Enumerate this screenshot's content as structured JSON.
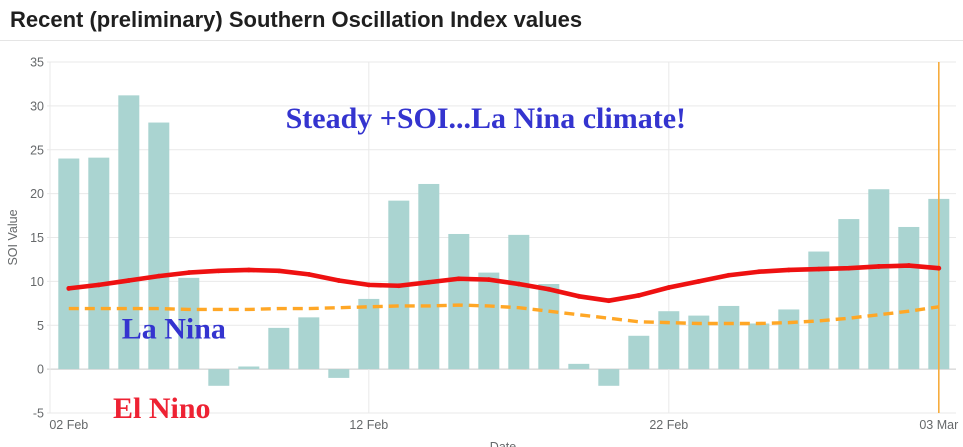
{
  "page": {
    "title": "Recent (preliminary) Southern Oscillation Index values"
  },
  "chart_data": {
    "type": "bar",
    "title": "Recent (preliminary) Southern Oscillation Index values",
    "xlabel": "Date",
    "ylabel": "SOI Value",
    "ylim": [
      -5,
      35
    ],
    "ytick_step": 5,
    "grid": true,
    "legend": "none",
    "categories": [
      "02 Feb",
      "03 Feb",
      "04 Feb",
      "05 Feb",
      "06 Feb",
      "07 Feb",
      "08 Feb",
      "09 Feb",
      "10 Feb",
      "11 Feb",
      "12 Feb",
      "13 Feb",
      "14 Feb",
      "15 Feb",
      "16 Feb",
      "17 Feb",
      "18 Feb",
      "19 Feb",
      "20 Feb",
      "21 Feb",
      "22 Feb",
      "23 Feb",
      "24 Feb",
      "25 Feb",
      "26 Feb",
      "27 Feb",
      "28 Feb",
      "01 Mar",
      "02 Mar",
      "03 Mar"
    ],
    "xticks": [
      {
        "day": 0,
        "label": "02 Feb"
      },
      {
        "day": 10,
        "label": "12 Feb"
      },
      {
        "day": 20,
        "label": "22 Feb"
      },
      {
        "day": 29,
        "label": "03 Mar"
      }
    ],
    "series": [
      {
        "name": "daily-soi-bars",
        "type": "bar",
        "color": "#aad4d1",
        "values": [
          24.0,
          24.1,
          31.2,
          28.1,
          10.4,
          -1.9,
          0.3,
          4.7,
          5.9,
          -1.0,
          8.0,
          19.2,
          21.1,
          15.4,
          11.0,
          15.3,
          9.7,
          0.6,
          -1.9,
          3.8,
          6.6,
          6.1,
          7.2,
          5.2,
          6.8,
          13.4,
          17.1,
          20.5,
          16.2,
          19.4
        ]
      },
      {
        "name": "soi-trend-line-red",
        "type": "line",
        "color": "#ee1111",
        "values": [
          9.2,
          9.6,
          10.1,
          10.6,
          11.0,
          11.2,
          11.3,
          11.2,
          10.8,
          10.1,
          9.6,
          9.5,
          9.9,
          10.3,
          10.2,
          9.7,
          9.1,
          8.3,
          7.8,
          8.4,
          9.3,
          10.0,
          10.7,
          11.1,
          11.3,
          11.4,
          11.5,
          11.7,
          11.8,
          11.5
        ]
      },
      {
        "name": "soi-average-line-orange-dashed",
        "type": "dashed-line",
        "color": "#ffa726",
        "values": [
          6.9,
          6.9,
          6.9,
          6.9,
          6.8,
          6.8,
          6.8,
          6.9,
          6.9,
          7.0,
          7.1,
          7.2,
          7.2,
          7.3,
          7.2,
          7.0,
          6.6,
          6.2,
          5.8,
          5.4,
          5.3,
          5.2,
          5.2,
          5.2,
          5.3,
          5.5,
          5.8,
          6.2,
          6.6,
          7.1
        ]
      }
    ],
    "marker_line": {
      "day": 29,
      "color": "#f6ac3e"
    },
    "annotations": [
      {
        "text": "Steady +SOI...La Nina climate!",
        "color": "#3434cf",
        "day": 13.9,
        "value": 28.7
      },
      {
        "text": "La Nina",
        "color": "#3434cf",
        "day": 3.5,
        "value": 4.7
      },
      {
        "text": "El Nino",
        "color": "#ee2233",
        "day": 3.1,
        "value": -4.4
      }
    ],
    "colors": {
      "grid": "#e9e9e9",
      "zero_line": "#c9c9c9",
      "axis_text": "#66696b"
    }
  }
}
